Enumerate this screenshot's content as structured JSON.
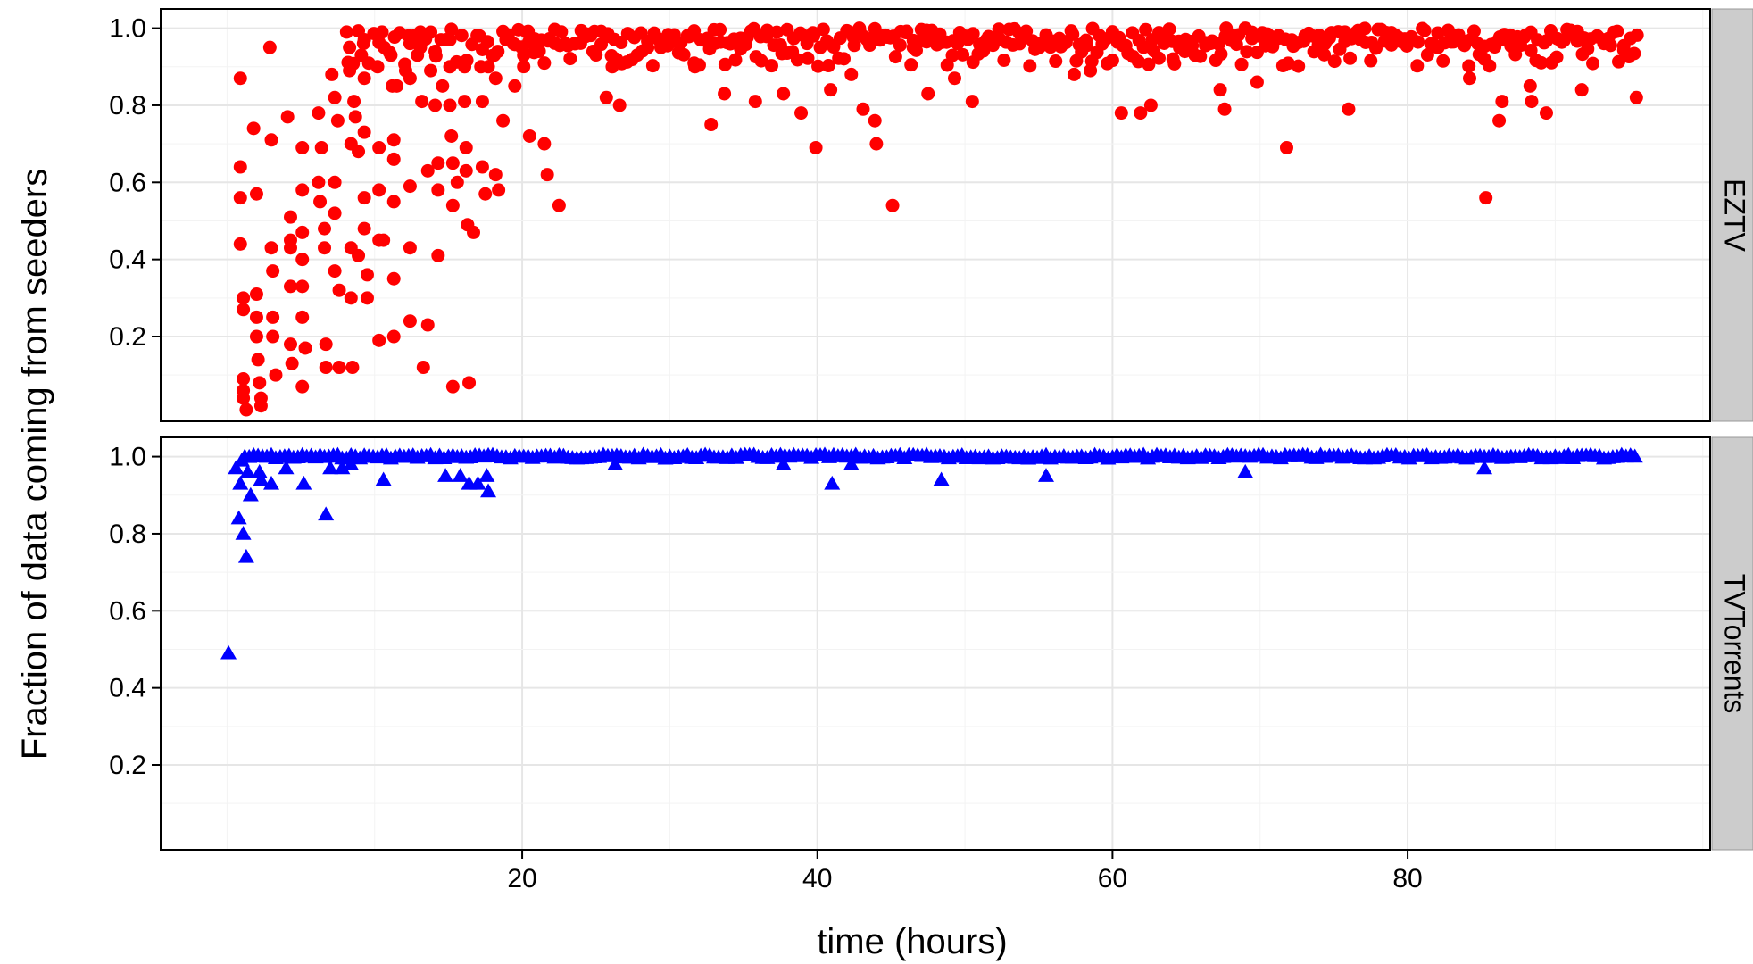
{
  "chart_data": {
    "type": "scatter",
    "xlabel": "time (hours)",
    "ylabel": "Fraction of data coming from seeders",
    "xlim": [
      -4.5,
      100.5
    ],
    "xticks": [
      20,
      40,
      60,
      80
    ],
    "xtick_labels": [
      "20",
      "40",
      "60",
      "80"
    ],
    "grid": true,
    "legend": "none",
    "panels": [
      {
        "strip": "EZTV",
        "color": "#ff0000",
        "marker": "circle",
        "ylim": [
          -0.02,
          1.05
        ],
        "yticks": [
          0.2,
          0.4,
          0.6,
          0.8,
          1.0
        ],
        "ytick_labels": [
          "0.2",
          "0.4",
          "0.6",
          "0.8",
          "1.0"
        ],
        "points": [
          [
            0.9,
            0.87
          ],
          [
            0.9,
            0.64
          ],
          [
            0.9,
            0.56
          ],
          [
            0.9,
            0.44
          ],
          [
            1.1,
            0.3
          ],
          [
            1.1,
            0.27
          ],
          [
            1.1,
            0.09
          ],
          [
            1.1,
            0.06
          ],
          [
            1.1,
            0.04
          ],
          [
            1.3,
            0.01
          ],
          [
            1.8,
            0.74
          ],
          [
            2.0,
            0.57
          ],
          [
            2.0,
            0.31
          ],
          [
            2.0,
            0.25
          ],
          [
            2.0,
            0.2
          ],
          [
            2.1,
            0.14
          ],
          [
            2.2,
            0.08
          ],
          [
            2.3,
            0.04
          ],
          [
            2.3,
            0.02
          ],
          [
            2.9,
            0.95
          ],
          [
            3.0,
            0.71
          ],
          [
            3.0,
            0.43
          ],
          [
            3.1,
            0.37
          ],
          [
            3.1,
            0.25
          ],
          [
            3.1,
            0.2
          ],
          [
            3.3,
            0.1
          ],
          [
            4.1,
            0.77
          ],
          [
            4.3,
            0.51
          ],
          [
            4.3,
            0.45
          ],
          [
            4.3,
            0.43
          ],
          [
            4.3,
            0.33
          ],
          [
            4.3,
            0.18
          ],
          [
            4.4,
            0.13
          ],
          [
            5.1,
            0.69
          ],
          [
            5.1,
            0.58
          ],
          [
            5.1,
            0.47
          ],
          [
            5.1,
            0.4
          ],
          [
            5.1,
            0.33
          ],
          [
            5.1,
            0.25
          ],
          [
            5.1,
            0.07
          ],
          [
            5.3,
            0.17
          ],
          [
            6.2,
            0.78
          ],
          [
            6.2,
            0.6
          ],
          [
            6.3,
            0.55
          ],
          [
            6.4,
            0.69
          ],
          [
            6.6,
            0.48
          ],
          [
            6.6,
            0.43
          ],
          [
            6.7,
            0.18
          ],
          [
            6.7,
            0.12
          ],
          [
            7.1,
            0.88
          ],
          [
            7.3,
            0.82
          ],
          [
            7.3,
            0.6
          ],
          [
            7.3,
            0.52
          ],
          [
            7.3,
            0.37
          ],
          [
            7.5,
            0.76
          ],
          [
            7.6,
            0.32
          ],
          [
            7.6,
            0.12
          ],
          [
            8.1,
            0.99
          ],
          [
            8.3,
            0.95
          ],
          [
            8.3,
            0.89
          ],
          [
            8.4,
            0.7
          ],
          [
            8.4,
            0.43
          ],
          [
            8.4,
            0.3
          ],
          [
            8.5,
            0.12
          ],
          [
            8.6,
            0.81
          ],
          [
            8.7,
            0.77
          ],
          [
            8.9,
            0.68
          ],
          [
            8.9,
            0.41
          ],
          [
            9.1,
            0.93
          ],
          [
            9.3,
            0.97
          ],
          [
            9.3,
            0.87
          ],
          [
            9.3,
            0.73
          ],
          [
            9.3,
            0.56
          ],
          [
            9.3,
            0.48
          ],
          [
            9.5,
            0.36
          ],
          [
            9.5,
            0.3
          ],
          [
            10.2,
            0.9
          ],
          [
            10.3,
            0.69
          ],
          [
            10.3,
            0.58
          ],
          [
            10.3,
            0.45
          ],
          [
            10.3,
            0.19
          ],
          [
            10.5,
            0.99
          ],
          [
            10.6,
            0.45
          ],
          [
            11.1,
            0.93
          ],
          [
            11.2,
            0.85
          ],
          [
            11.3,
            0.71
          ],
          [
            11.3,
            0.66
          ],
          [
            11.3,
            0.55
          ],
          [
            11.3,
            0.35
          ],
          [
            11.3,
            0.2
          ],
          [
            11.5,
            0.85
          ],
          [
            12.1,
            0.89
          ],
          [
            12.3,
            0.98
          ],
          [
            12.4,
            0.87
          ],
          [
            12.4,
            0.59
          ],
          [
            12.4,
            0.43
          ],
          [
            12.4,
            0.24
          ],
          [
            12.7,
            0.97
          ],
          [
            12.9,
            0.93
          ],
          [
            13.1,
            0.99
          ],
          [
            13.2,
            0.81
          ],
          [
            13.3,
            0.12
          ],
          [
            13.6,
            0.23
          ],
          [
            13.6,
            0.63
          ],
          [
            13.8,
            0.89
          ],
          [
            14.1,
            0.94
          ],
          [
            14.1,
            0.8
          ],
          [
            14.3,
            0.65
          ],
          [
            14.3,
            0.58
          ],
          [
            14.3,
            0.41
          ],
          [
            14.6,
            0.85
          ],
          [
            15.1,
            0.97
          ],
          [
            15.1,
            0.9
          ],
          [
            15.1,
            0.8
          ],
          [
            15.2,
            0.72
          ],
          [
            15.3,
            0.65
          ],
          [
            15.3,
            0.54
          ],
          [
            15.3,
            0.07
          ],
          [
            15.6,
            0.6
          ],
          [
            16.1,
            0.9
          ],
          [
            16.1,
            0.81
          ],
          [
            16.2,
            0.69
          ],
          [
            16.2,
            0.63
          ],
          [
            16.3,
            0.49
          ],
          [
            16.4,
            0.08
          ],
          [
            16.7,
            0.47
          ],
          [
            17.1,
            0.98
          ],
          [
            17.2,
            0.9
          ],
          [
            17.3,
            0.81
          ],
          [
            17.3,
            0.64
          ],
          [
            17.5,
            0.57
          ],
          [
            17.7,
            0.9
          ],
          [
            18.1,
            0.93
          ],
          [
            18.2,
            0.87
          ],
          [
            18.2,
            0.62
          ],
          [
            18.4,
            0.58
          ],
          [
            18.7,
            0.76
          ],
          [
            18.9,
            0.97
          ],
          [
            19.5,
            0.85
          ],
          [
            20.1,
            0.93
          ],
          [
            20.3,
            0.99
          ],
          [
            20.5,
            0.72
          ],
          [
            21.1,
            0.94
          ],
          [
            21.5,
            0.7
          ],
          [
            21.7,
            0.62
          ],
          [
            22.5,
            0.54
          ],
          [
            24.8,
            0.94
          ],
          [
            25.7,
            0.82
          ],
          [
            26.1,
            0.9
          ],
          [
            26.6,
            0.8
          ],
          [
            29.4,
            0.95
          ],
          [
            31.7,
            0.9
          ],
          [
            32.8,
            0.75
          ],
          [
            33.7,
            0.83
          ],
          [
            35.8,
            0.81
          ],
          [
            37.7,
            0.83
          ],
          [
            38.9,
            0.78
          ],
          [
            39.9,
            0.69
          ],
          [
            40.9,
            0.84
          ],
          [
            42.3,
            0.88
          ],
          [
            43.1,
            0.79
          ],
          [
            43.9,
            0.76
          ],
          [
            44.0,
            0.7
          ],
          [
            45.1,
            0.54
          ],
          [
            46.5,
            0.95
          ],
          [
            47.5,
            0.83
          ],
          [
            49.3,
            0.87
          ],
          [
            50.5,
            0.81
          ],
          [
            55.1,
            0.96
          ],
          [
            57.4,
            0.88
          ],
          [
            58.5,
            0.89
          ],
          [
            60.6,
            0.78
          ],
          [
            61.9,
            0.78
          ],
          [
            62.6,
            0.8
          ],
          [
            64.1,
            0.92
          ],
          [
            67.3,
            0.84
          ],
          [
            67.6,
            0.79
          ],
          [
            69.8,
            0.86
          ],
          [
            71.8,
            0.69
          ],
          [
            76.0,
            0.79
          ],
          [
            84.2,
            0.87
          ],
          [
            85.3,
            0.56
          ],
          [
            86.2,
            0.76
          ],
          [
            86.4,
            0.81
          ],
          [
            88.3,
            0.85
          ],
          [
            88.4,
            0.81
          ],
          [
            89.4,
            0.78
          ],
          [
            91.8,
            0.84
          ],
          [
            95.5,
            0.82
          ]
        ]
      },
      {
        "strip": "TVTorrents",
        "color": "#0000ff",
        "marker": "triangle",
        "ylim": [
          -0.02,
          1.05
        ],
        "yticks": [
          0.2,
          0.4,
          0.6,
          0.8,
          1.0
        ],
        "ytick_labels": [
          "0.2",
          "0.4",
          "0.6",
          "0.8",
          "1.0"
        ],
        "points": [
          [
            0.1,
            0.49
          ],
          [
            0.6,
            0.97
          ],
          [
            0.8,
            0.84
          ],
          [
            0.9,
            0.93
          ],
          [
            1.0,
            0.99
          ],
          [
            1.1,
            0.8
          ],
          [
            1.3,
            0.74
          ],
          [
            1.4,
            0.96
          ],
          [
            1.6,
            0.9
          ],
          [
            2.2,
            0.96
          ],
          [
            2.3,
            0.94
          ],
          [
            3.0,
            0.93
          ],
          [
            4.0,
            0.97
          ],
          [
            5.2,
            0.93
          ],
          [
            6.7,
            0.85
          ],
          [
            7.0,
            0.97
          ],
          [
            7.8,
            0.97
          ],
          [
            8.4,
            0.98
          ],
          [
            10.6,
            0.94
          ],
          [
            14.8,
            0.95
          ],
          [
            15.8,
            0.95
          ],
          [
            16.4,
            0.93
          ],
          [
            17.0,
            0.93
          ],
          [
            17.6,
            0.95
          ],
          [
            17.7,
            0.91
          ],
          [
            26.3,
            0.98
          ],
          [
            37.7,
            0.98
          ],
          [
            41.0,
            0.93
          ],
          [
            42.3,
            0.98
          ],
          [
            48.4,
            0.94
          ],
          [
            55.5,
            0.95
          ],
          [
            69.0,
            0.96
          ],
          [
            85.2,
            0.97
          ]
        ]
      }
    ]
  }
}
